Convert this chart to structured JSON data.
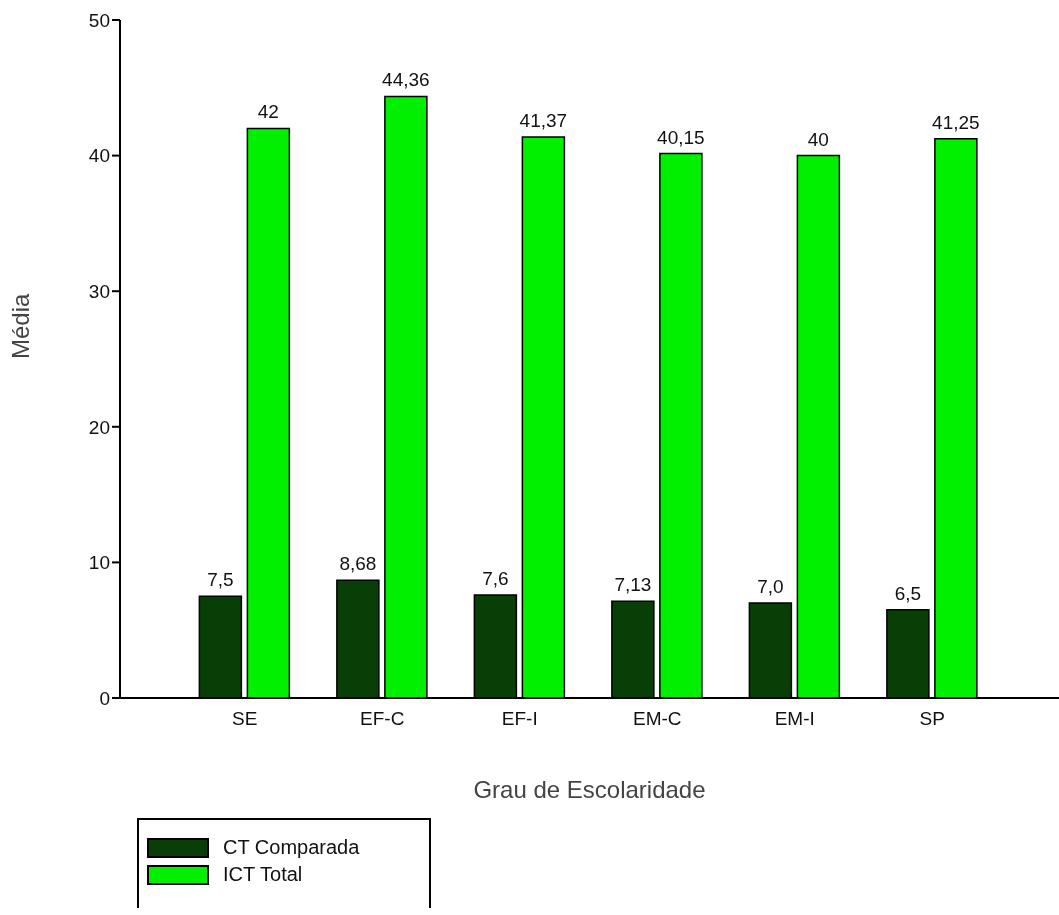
{
  "chart_data": {
    "type": "bar",
    "xlabel": "Grau de Escolaridade",
    "ylabel": "Média",
    "categories": [
      "SE",
      "EF-C",
      "EF-I",
      "EM-C",
      "EM-I",
      "SP"
    ],
    "series": [
      {
        "name": "CT Comparada",
        "color": "#073f07",
        "values": [
          7.5,
          8.68,
          7.6,
          7.13,
          7.0,
          6.5
        ],
        "value_labels": [
          "7,5",
          "8,68",
          "7,6",
          "7,13",
          "7,0",
          "6,5"
        ]
      },
      {
        "name": "ICT Total",
        "color": "#00f000",
        "values": [
          42,
          44.36,
          41.37,
          40.15,
          40,
          41.25
        ],
        "value_labels": [
          "42",
          "44,36",
          "41,37",
          "40,15",
          "40",
          "41,25"
        ]
      }
    ],
    "ylim": [
      0,
      50
    ],
    "yticks": [
      0,
      10,
      20,
      30,
      40,
      50
    ],
    "grid": false,
    "legend": "bottom left"
  }
}
